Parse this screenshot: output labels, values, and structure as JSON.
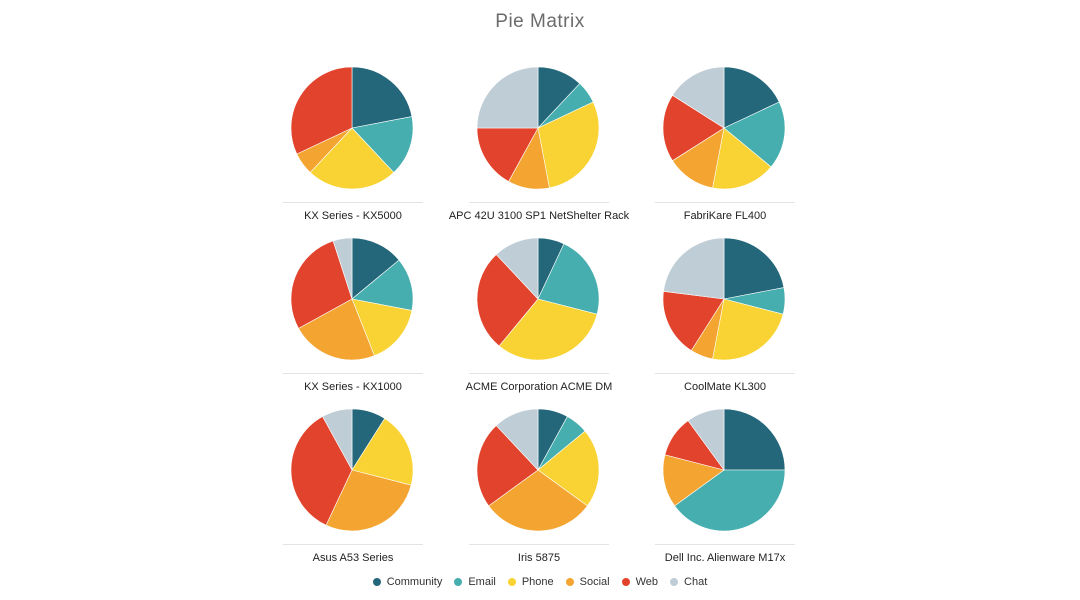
{
  "chart_data": {
    "type": "pie",
    "title": "Pie Matrix",
    "series_names": [
      "Community",
      "Email",
      "Phone",
      "Social",
      "Web",
      "Chat"
    ],
    "colors": [
      "#24677a",
      "#46aeae",
      "#f9d333",
      "#f4a531",
      "#e2432c",
      "#bfcdd6"
    ],
    "legend_position": "bottom",
    "pies": [
      {
        "label": "KX Series - KX5000",
        "values": [
          22,
          16,
          24,
          6,
          32,
          0
        ]
      },
      {
        "label": "APC 42U 3100 SP1 NetShelter Rack",
        "values": [
          12,
          6,
          29,
          11,
          17,
          25
        ]
      },
      {
        "label": "FabriKare FL400",
        "values": [
          18,
          18,
          17,
          13,
          18,
          16
        ]
      },
      {
        "label": "KX Series - KX1000",
        "values": [
          14,
          14,
          16,
          23,
          28,
          5
        ]
      },
      {
        "label": "ACME Corporation ACME DM",
        "values": [
          7,
          22,
          32,
          0,
          27,
          12
        ]
      },
      {
        "label": "CoolMate KL300",
        "values": [
          22,
          7,
          24,
          6,
          18,
          23
        ]
      },
      {
        "label": "Asus A53 Series",
        "values": [
          9,
          0,
          20,
          28,
          35,
          8
        ]
      },
      {
        "label": "Iris 5875",
        "values": [
          8,
          6,
          21,
          30,
          23,
          12
        ]
      },
      {
        "label": "Dell Inc. Alienware M17x",
        "values": [
          25,
          40,
          0,
          14,
          11,
          10
        ]
      }
    ]
  }
}
